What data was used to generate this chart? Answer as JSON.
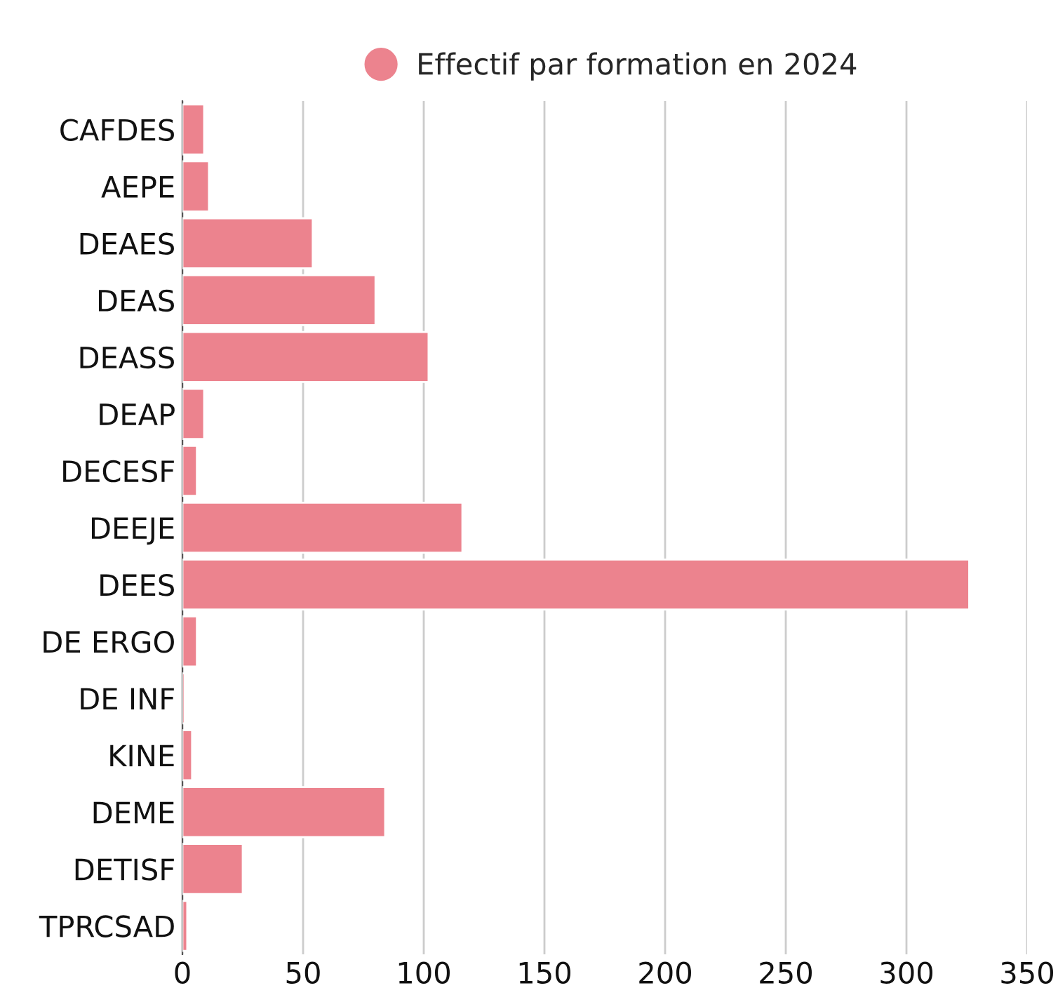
{
  "chart_data": {
    "type": "bar",
    "orientation": "horizontal",
    "categories": [
      "CAFDES",
      "AEPE",
      "DEAES",
      "DEAS",
      "DEASS",
      "DEAP",
      "DECESF",
      "DEEJE",
      "DEES",
      "DE ERGO",
      "DE INF",
      "KINE",
      "DEME",
      "DETISF",
      "TPRCSAD"
    ],
    "series": [
      {
        "name": "Effectif par formation en 2024",
        "color": "#ec838e",
        "values": [
          9,
          11,
          54,
          80,
          102,
          9,
          6,
          116,
          326,
          6,
          1,
          4,
          84,
          25,
          2
        ]
      }
    ],
    "xlim": [
      0,
      350
    ],
    "xticks": [
      0,
      50,
      100,
      150,
      200,
      250,
      300,
      350
    ],
    "grid": "x",
    "legend": "top"
  }
}
